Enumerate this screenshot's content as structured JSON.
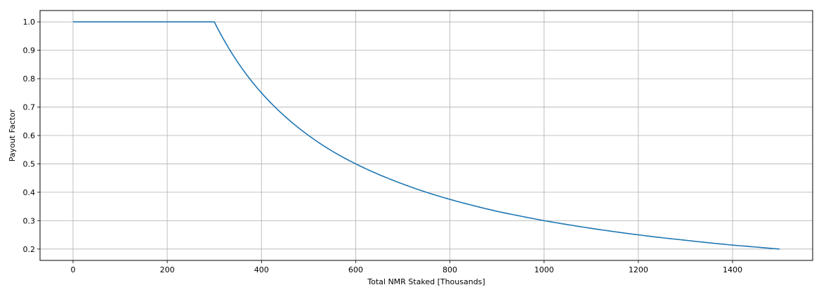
{
  "chart_data": {
    "type": "line",
    "title": "",
    "xlabel": "Total NMR Staked [Thousands]",
    "ylabel": "Payout Factor",
    "xlim": [
      -70,
      1570
    ],
    "ylim": [
      0.16,
      1.04
    ],
    "grid": true,
    "x_ticks": [
      0,
      200,
      400,
      600,
      800,
      1000,
      1200,
      1400
    ],
    "x_tick_labels": [
      "0",
      "200",
      "400",
      "600",
      "800",
      "1000",
      "1200",
      "1400"
    ],
    "y_ticks": [
      0.2,
      0.3,
      0.4,
      0.5,
      0.6,
      0.7,
      0.8,
      0.9,
      1.0
    ],
    "y_tick_labels": [
      "0.2",
      "0.3",
      "0.4",
      "0.5",
      "0.6",
      "0.7",
      "0.8",
      "0.9",
      "1.0"
    ],
    "series": [
      {
        "color": "#1f77b4",
        "x": [
          0,
          100,
          200,
          300,
          325,
          350,
          375,
          400,
          450,
          500,
          550,
          600,
          650,
          700,
          750,
          800,
          850,
          900,
          950,
          1000,
          1050,
          1100,
          1150,
          1200,
          1250,
          1300,
          1350,
          1400,
          1450,
          1500
        ],
        "y": [
          1.0,
          1.0,
          1.0,
          1.0,
          0.923,
          0.857,
          0.8,
          0.75,
          0.667,
          0.6,
          0.545,
          0.5,
          0.462,
          0.429,
          0.4,
          0.375,
          0.353,
          0.333,
          0.316,
          0.3,
          0.286,
          0.273,
          0.261,
          0.25,
          0.24,
          0.231,
          0.222,
          0.214,
          0.207,
          0.2
        ]
      }
    ]
  }
}
